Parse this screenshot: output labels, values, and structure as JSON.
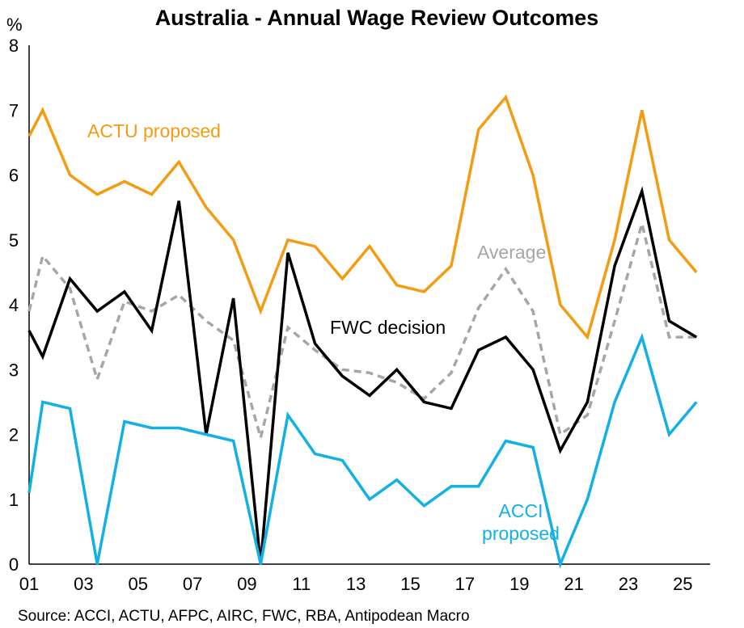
{
  "chart_data": {
    "type": "line",
    "title": "Australia - Annual Wage Review Outcomes",
    "ylabel": "%",
    "ylim": [
      0,
      8
    ],
    "y_ticks": [
      "0",
      "1",
      "2",
      "3",
      "4",
      "5",
      "6",
      "7",
      "8"
    ],
    "xlim": [
      2001,
      2026
    ],
    "x_ticks": [
      "01",
      "03",
      "05",
      "07",
      "09",
      "11",
      "13",
      "15",
      "17",
      "19",
      "21",
      "23",
      "25"
    ],
    "grid": false,
    "series": [
      {
        "name": "ACTU proposed",
        "color": "#F39C12",
        "dashed": false,
        "x": [
          2001,
          2001.5,
          2002.5,
          2003.5,
          2004.5,
          2005.5,
          2006.5,
          2007.5,
          2008.5,
          2009.5,
          2010.5,
          2011.5,
          2012.5,
          2013.5,
          2014.5,
          2015.5,
          2016.5,
          2017.5,
          2018.5,
          2019.5,
          2020.5,
          2021.5,
          2022.5,
          2023.5,
          2024.5,
          2025.5
        ],
        "values": [
          6.6,
          7.0,
          6.0,
          5.7,
          5.9,
          5.7,
          6.2,
          5.5,
          5.0,
          3.9,
          5.0,
          4.9,
          4.4,
          4.9,
          4.3,
          4.2,
          4.6,
          6.7,
          7.2,
          6.0,
          4.0,
          3.5,
          5.0,
          7.0,
          5.0,
          4.5
        ]
      },
      {
        "name": "Average",
        "color": "#A6A6A6",
        "dashed": true,
        "x": [
          2001,
          2001.5,
          2002.5,
          2003.5,
          2004.5,
          2005.5,
          2006.5,
          2007.5,
          2008.5,
          2009.5,
          2010.5,
          2011.5,
          2012.5,
          2013.5,
          2014.5,
          2015.5,
          2016.5,
          2017.5,
          2018.5,
          2019.5,
          2020.5,
          2021.5,
          2022.5,
          2023.5,
          2024.5,
          2025.5
        ],
        "values": [
          3.9,
          4.75,
          4.25,
          2.85,
          4.05,
          3.9,
          4.15,
          3.75,
          3.45,
          1.95,
          3.65,
          3.3,
          3.0,
          2.95,
          2.8,
          2.55,
          2.95,
          3.95,
          4.55,
          3.9,
          2.0,
          2.3,
          3.75,
          5.25,
          3.5,
          3.5
        ]
      },
      {
        "name": "FWC decision",
        "color": "#000000",
        "dashed": false,
        "x": [
          2001,
          2001.5,
          2002.5,
          2003.5,
          2004.5,
          2005.5,
          2006.5,
          2007.5,
          2008.5,
          2009.5,
          2010.5,
          2011.5,
          2012.5,
          2013.5,
          2014.5,
          2015.5,
          2016.5,
          2017.5,
          2018.5,
          2019.5,
          2020.5,
          2021.5,
          2022.5,
          2023.5,
          2024.5,
          2025.5
        ],
        "values": [
          3.6,
          3.2,
          4.4,
          3.9,
          4.2,
          3.6,
          5.6,
          2.0,
          4.1,
          0.0,
          4.8,
          3.4,
          2.9,
          2.6,
          3.0,
          2.5,
          2.4,
          3.3,
          3.5,
          3.0,
          1.75,
          2.5,
          4.6,
          5.75,
          3.75,
          3.5
        ]
      },
      {
        "name": "ACCI proposed",
        "color": "#13B0E6",
        "dashed": false,
        "x": [
          2001,
          2001.5,
          2002.5,
          2003.5,
          2004.5,
          2005.5,
          2006.5,
          2007.5,
          2008.5,
          2009.5,
          2010.5,
          2011.5,
          2012.5,
          2013.5,
          2014.5,
          2015.5,
          2016.5,
          2017.5,
          2018.5,
          2019.5,
          2020.5,
          2021.5,
          2022.5,
          2023.5,
          2024.5,
          2025.5
        ],
        "values": [
          1.1,
          2.5,
          2.4,
          0.0,
          2.2,
          2.1,
          2.1,
          2.0,
          1.9,
          0.0,
          2.3,
          1.7,
          1.6,
          1.0,
          1.3,
          0.9,
          1.2,
          1.2,
          1.9,
          1.8,
          0.0,
          1.0,
          2.5,
          3.5,
          2.0,
          2.5
        ]
      }
    ],
    "labels": {
      "actu": "ACTU proposed",
      "average": "Average",
      "fwc": "FWC decision",
      "acci_line1": "ACCI",
      "acci_line2": "proposed"
    },
    "source": "Source: ACCI, ACTU, AFPC, AIRC, FWC, RBA, Antipodean Macro"
  }
}
